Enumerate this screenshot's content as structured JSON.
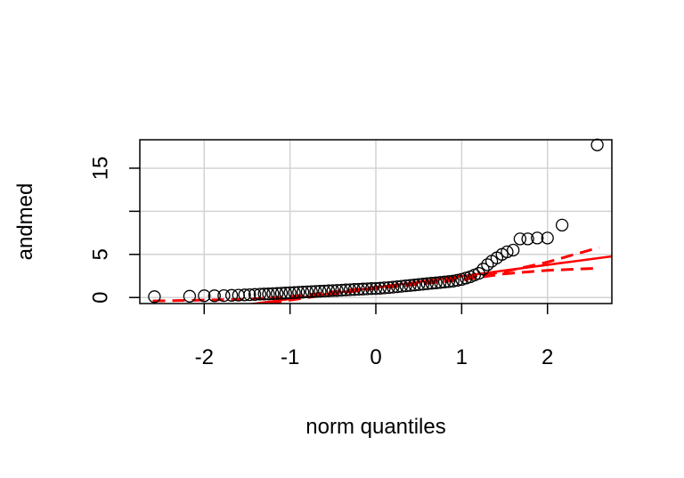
{
  "chart_data": {
    "type": "scatter",
    "title": "",
    "xlabel": "norm quantiles",
    "ylabel": "andmed",
    "xlim": [
      -2.75,
      2.75
    ],
    "ylim": [
      -0.7,
      18.3
    ],
    "x_ticks": [
      -2,
      -1,
      0,
      1,
      2
    ],
    "x_tick_labels": [
      "-2",
      "-1",
      "0",
      "1",
      "2"
    ],
    "y_ticks": [
      0,
      5,
      10,
      15
    ],
    "y_tick_labels": [
      "0",
      "5",
      "",
      "15"
    ],
    "x_grid": [
      -2,
      -1,
      0,
      1,
      2
    ],
    "y_grid": [
      0,
      5,
      10,
      15
    ],
    "grid": true,
    "points": {
      "x": [
        -2.58,
        -2.17,
        -2.0,
        -1.88,
        -1.77,
        -1.68,
        -1.6,
        -1.53,
        -1.47,
        -1.41,
        -1.35,
        -1.3,
        -1.25,
        -1.2,
        -1.15,
        -1.1,
        -1.05,
        -1.0,
        -0.95,
        -0.9,
        -0.85,
        -0.8,
        -0.75,
        -0.7,
        -0.65,
        -0.6,
        -0.55,
        -0.5,
        -0.45,
        -0.4,
        -0.35,
        -0.3,
        -0.25,
        -0.2,
        -0.15,
        -0.1,
        -0.05,
        0.0,
        0.05,
        0.1,
        0.15,
        0.2,
        0.25,
        0.3,
        0.35,
        0.4,
        0.45,
        0.5,
        0.55,
        0.6,
        0.65,
        0.7,
        0.75,
        0.8,
        0.85,
        0.9,
        0.95,
        1.0,
        1.05,
        1.1,
        1.15,
        1.2,
        1.25,
        1.3,
        1.35,
        1.41,
        1.47,
        1.53,
        1.6,
        1.68,
        1.77,
        1.88,
        2.0,
        2.17,
        2.58
      ],
      "y": [
        0.1,
        0.15,
        0.2,
        0.2,
        0.22,
        0.25,
        0.27,
        0.3,
        0.32,
        0.35,
        0.38,
        0.4,
        0.42,
        0.45,
        0.47,
        0.5,
        0.52,
        0.55,
        0.57,
        0.6,
        0.62,
        0.65,
        0.68,
        0.7,
        0.72,
        0.75,
        0.78,
        0.8,
        0.82,
        0.85,
        0.88,
        0.9,
        0.93,
        0.95,
        0.98,
        1.0,
        1.03,
        1.05,
        1.08,
        1.12,
        1.15,
        1.2,
        1.25,
        1.3,
        1.35,
        1.4,
        1.45,
        1.5,
        1.55,
        1.6,
        1.65,
        1.7,
        1.75,
        1.8,
        1.85,
        1.9,
        2.0,
        2.1,
        2.25,
        2.4,
        2.6,
        2.8,
        3.3,
        3.8,
        4.2,
        4.6,
        5.0,
        5.3,
        5.5,
        6.8,
        6.8,
        6.9,
        6.9,
        8.4,
        17.7
      ]
    },
    "reference_line": {
      "intercept": 1.15,
      "slope": 1.32,
      "color": "#ff0000"
    },
    "confidence_band": {
      "x": [
        -2.6,
        -2.0,
        -1.5,
        -1.0,
        -0.5,
        0.0,
        0.5,
        1.0,
        1.5,
        2.0,
        2.6
      ],
      "upper": [
        -0.4,
        -0.3,
        -0.2,
        0.1,
        0.65,
        1.2,
        1.75,
        2.3,
        3.0,
        4.1,
        5.8
      ],
      "lower": [
        -2.6,
        -1.9,
        -1.1,
        -0.3,
        0.4,
        1.05,
        1.55,
        2.05,
        2.75,
        3.15,
        3.4
      ],
      "color": "#ff0000"
    }
  }
}
